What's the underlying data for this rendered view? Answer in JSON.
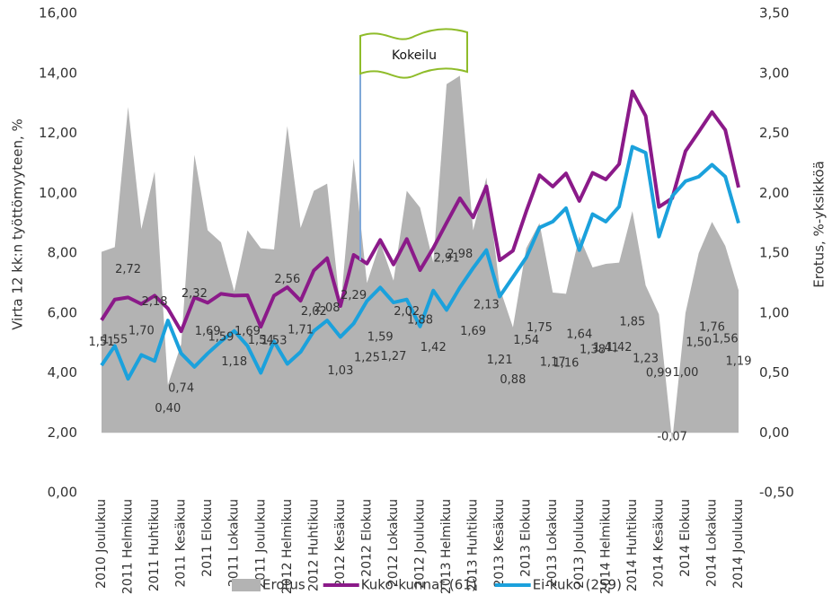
{
  "chart_data": {
    "type": "line",
    "annotation": "Kokeilu",
    "ylabel": "Virta 12 kk:n työttömyyteen, %",
    "y2label": "Erotus, %-yksikköä",
    "categories": [
      "2010 Joulukuu",
      null,
      "2011 Helmikuu",
      null,
      "2011 Huhtikuu",
      null,
      "2011 Kesäkuu",
      null,
      "2011 Elokuu",
      null,
      "2011 Lokakuu",
      null,
      "2011 Joulukuu",
      null,
      "2012 Helmikuu",
      null,
      "2012 Huhtikuu",
      null,
      "2012 Kesäkuu",
      null,
      "2012 Elokuu",
      null,
      "2012 Lokakuu",
      null,
      "2012 Joulukuu",
      null,
      "2013 Helmikuu",
      null,
      "2013 Huhtikuu",
      null,
      "2013 Kesäkuu",
      null,
      "2013 Elokuu",
      null,
      "2013 Lokakuu",
      null,
      "2013 Joulukuu",
      null,
      "2014 Helmikuu",
      null,
      "2014 Huhtikuu",
      null,
      "2014 Kesäkuu",
      null,
      "2014 Elokuu",
      null,
      "2014 Lokakuu",
      null,
      "2014 Joulukuu"
    ],
    "series": [
      {
        "name": "Erotus",
        "type": "area",
        "axis": "y2",
        "color": "#b3b3b3",
        "values": [
          1.51,
          1.55,
          2.72,
          1.7,
          2.18,
          0.4,
          0.74,
          2.32,
          1.69,
          1.59,
          1.18,
          1.69,
          1.54,
          1.53,
          2.56,
          1.71,
          2.02,
          2.08,
          1.03,
          2.29,
          1.25,
          1.59,
          1.27,
          2.02,
          1.88,
          1.42,
          2.91,
          2.98,
          1.69,
          2.13,
          1.21,
          0.88,
          1.54,
          1.75,
          1.17,
          1.16,
          1.64,
          1.38,
          1.41,
          1.42,
          1.85,
          1.23,
          0.99,
          -0.07,
          1.0,
          1.5,
          1.76,
          1.56,
          1.19
        ],
        "value_labels": [
          "1,51",
          "1,55",
          "2,72",
          "1,70",
          "2,18",
          "0,40",
          "0,74",
          "2,32",
          "1,69",
          "1,59",
          "1,18",
          "1,69",
          "1,54",
          "1,53",
          "2,56",
          "1,71",
          "2,02",
          "2,08",
          "1,03",
          "2,29",
          "1,25",
          "1,59",
          "1,27",
          "2,02",
          "1,88",
          "1,42",
          "2,91",
          "2,98",
          "1,69",
          "2,13",
          "1,21",
          "0,88",
          "1,54",
          "1,75",
          "1,17",
          "1,16",
          "1,64",
          "1,38",
          "1,41",
          "1,42",
          "1,85",
          "1,23",
          "0,99",
          "-0,07",
          "1,00",
          "1,50",
          "1,76",
          "1,56",
          "1,19"
        ]
      },
      {
        "name": "Kuko-kunnat (61)",
        "type": "line",
        "color": "#8b1a89",
        "values": [
          5.76,
          6.45,
          6.52,
          6.3,
          6.58,
          6.15,
          5.39,
          6.52,
          6.34,
          6.64,
          6.58,
          6.59,
          5.54,
          6.58,
          6.86,
          6.41,
          7.42,
          7.83,
          6.23,
          7.94,
          7.65,
          8.44,
          7.62,
          8.47,
          7.43,
          8.17,
          9.01,
          9.83,
          9.19,
          10.23,
          7.76,
          8.08,
          9.39,
          10.6,
          10.22,
          10.66,
          9.74,
          10.68,
          10.46,
          10.97,
          13.4,
          12.58,
          9.54,
          9.83,
          11.4,
          12.05,
          12.71,
          12.11,
          10.19
        ]
      },
      {
        "name": "Ei-kuko (259)",
        "type": "line",
        "color": "#1ba1dc",
        "values": [
          4.25,
          4.9,
          3.8,
          4.6,
          4.4,
          5.75,
          4.65,
          4.2,
          4.65,
          5.05,
          5.4,
          4.9,
          4.0,
          5.05,
          4.3,
          4.7,
          5.4,
          5.75,
          5.2,
          5.65,
          6.4,
          6.85,
          6.35,
          6.45,
          5.55,
          6.75,
          6.1,
          6.85,
          7.5,
          8.1,
          6.55,
          7.2,
          7.85,
          8.85,
          9.05,
          9.5,
          8.1,
          9.3,
          9.05,
          9.55,
          11.55,
          11.35,
          8.55,
          9.9,
          10.4,
          10.55,
          10.95,
          10.55,
          9.0
        ]
      }
    ],
    "ylim": [
      0,
      16
    ],
    "yticks": [
      {
        "value": 0,
        "label": "0,00"
      },
      {
        "value": 2,
        "label": "2,00"
      },
      {
        "value": 4,
        "label": "4,00"
      },
      {
        "value": 6,
        "label": "6,00"
      },
      {
        "value": 8,
        "label": "8,00"
      },
      {
        "value": 10,
        "label": "10,00"
      },
      {
        "value": 12,
        "label": "12,00"
      },
      {
        "value": 14,
        "label": "14,00"
      },
      {
        "value": 16,
        "label": "16,00"
      }
    ],
    "y2lim": [
      -0.5,
      3.5
    ],
    "y2ticks": [
      {
        "value": -0.5,
        "label": "-0,50"
      },
      {
        "value": 0,
        "label": "0,00"
      },
      {
        "value": 0.5,
        "label": "0,50"
      },
      {
        "value": 1,
        "label": "1,00"
      },
      {
        "value": 1.5,
        "label": "1,50"
      },
      {
        "value": 2,
        "label": "2,00"
      },
      {
        "value": 2.5,
        "label": "2,50"
      },
      {
        "value": 3,
        "label": "3,00"
      },
      {
        "value": 3.5,
        "label": "3,50"
      }
    ],
    "legend": "bottom"
  }
}
